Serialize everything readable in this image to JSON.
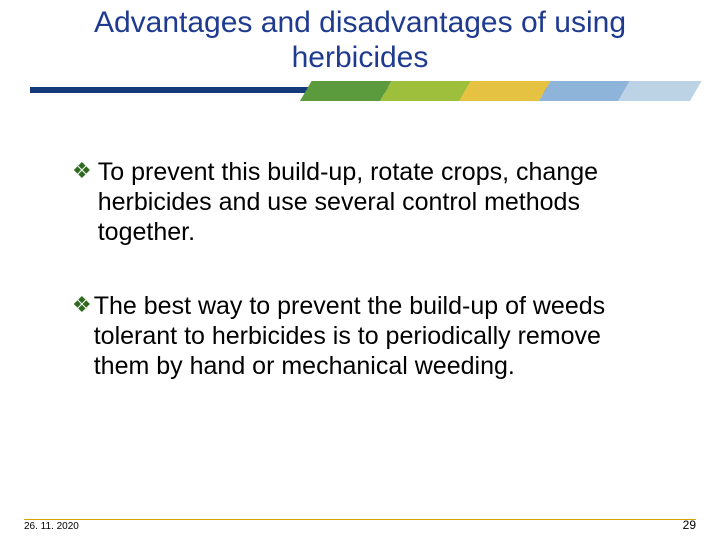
{
  "title": "Advantages and disadvantages of using herbicides",
  "stripe": {
    "dark_color": "#153a7a",
    "segments": [
      "#5c9a3e",
      "#9dbf3b",
      "#e6c242",
      "#8fb4d9",
      "#bcd3e6"
    ]
  },
  "bullets": [
    {
      "icon_color": "#2f6b1f",
      "text": " To prevent this build-up, rotate crops, change herbicides and use several control methods together."
    },
    {
      "icon_color": "#2f6b1f",
      "text": "The best way to prevent the build-up of weeds tolerant to herbicides is to periodically remove them by hand or mechanical weeding."
    }
  ],
  "footer": {
    "date": "26. 11. 2020",
    "page": "29",
    "line_color": "#d9a300"
  },
  "typography": {
    "title_color": "#1f3b8f",
    "title_fontsize": 30,
    "body_fontsize": 25,
    "body_color": "#000000",
    "footer_fontsize": 10
  }
}
